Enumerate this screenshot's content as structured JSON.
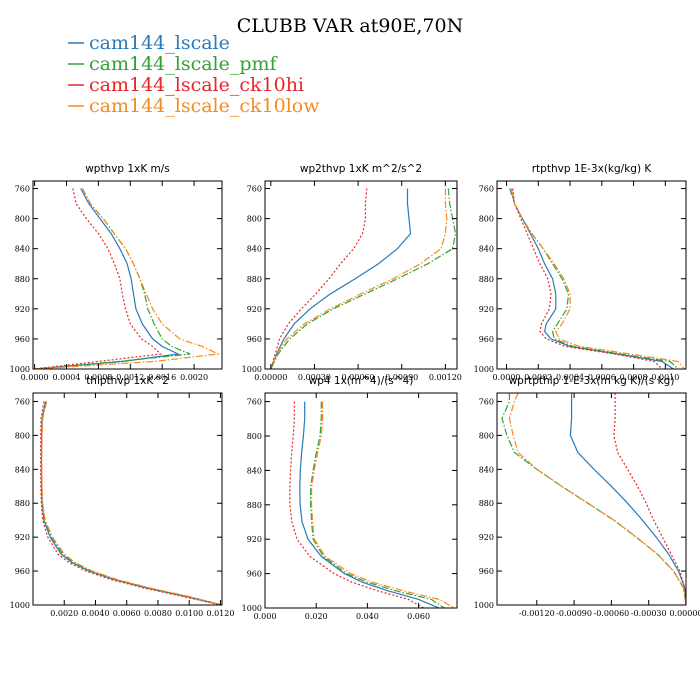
{
  "figure_title": "CLUBB VAR at90E,70N",
  "legend": [
    {
      "label": "cam144_lscale",
      "color": "#2a7ab8",
      "dash": "solid"
    },
    {
      "label": "cam144_lscale_pmf",
      "color": "#35a135",
      "dash": "dashdot"
    },
    {
      "label": "cam144_lscale_ck10hi",
      "color": "#e8262a",
      "dash": "dotted"
    },
    {
      "label": "cam144_lscale_ck10low",
      "color": "#f58b1f",
      "dash": "dashdot"
    }
  ],
  "chart_data": [
    {
      "type": "line",
      "title": "wpthvp   1xK m/s",
      "xlim": [
        -2e-05,
        0.00235
      ],
      "ylim": [
        1000,
        750
      ],
      "xticks": [
        0.0,
        0.0004,
        0.0008,
        0.0012,
        0.0016,
        0.002
      ],
      "xtick_labels": [
        "0.0000",
        "0.0004",
        "0.0008",
        "0.0012",
        "0.0016",
        "0.0020"
      ],
      "yticks": [
        760,
        800,
        840,
        880,
        920,
        960,
        1000
      ],
      "ytick_labels": [
        "760",
        "800",
        "840",
        "880",
        "920",
        "960",
        "1000"
      ],
      "y": [
        760,
        780,
        800,
        820,
        840,
        860,
        880,
        900,
        920,
        940,
        960,
        970,
        980,
        990,
        1000
      ],
      "series": [
        {
          "name": "cam144_lscale",
          "values": [
            0.00058,
            0.00068,
            0.00082,
            0.00096,
            0.00107,
            0.00116,
            0.00121,
            0.00124,
            0.00127,
            0.00135,
            0.00148,
            0.0016,
            0.0018,
            0.0011,
            0.0
          ]
        },
        {
          "name": "cam144_lscale_pmf",
          "values": [
            0.0006,
            0.0007,
            0.00086,
            0.001,
            0.00114,
            0.00124,
            0.00132,
            0.00138,
            0.00142,
            0.0015,
            0.0016,
            0.00172,
            0.00195,
            0.00105,
            0.0
          ]
        },
        {
          "name": "cam144_lscale_ck10hi",
          "values": [
            0.00048,
            0.00052,
            0.00065,
            0.0008,
            0.00092,
            0.001,
            0.00107,
            0.0011,
            0.00114,
            0.0012,
            0.00134,
            0.00148,
            0.00158,
            0.0008,
            0.0
          ]
        },
        {
          "name": "cam144_lscale_ck10low",
          "values": [
            0.0006,
            0.0007,
            0.00086,
            0.001,
            0.00114,
            0.00124,
            0.00132,
            0.0014,
            0.00148,
            0.0016,
            0.00182,
            0.0021,
            0.0023,
            0.0015,
            0.0
          ]
        }
      ]
    },
    {
      "type": "line",
      "title": "wp2thvp   1xK m^2/s^2",
      "xlim": [
        -4e-05,
        0.00128
      ],
      "ylim": [
        1000,
        750
      ],
      "xticks": [
        0.0,
        0.0003,
        0.0006,
        0.0009,
        0.0012
      ],
      "xtick_labels": [
        "0.00000",
        "0.00030",
        "0.00060",
        "0.00090",
        "0.00120"
      ],
      "yticks": [
        760,
        800,
        840,
        880,
        920,
        960,
        1000
      ],
      "ytick_labels": [
        "760",
        "800",
        "840",
        "880",
        "920",
        "960",
        "1000"
      ],
      "y": [
        760,
        780,
        800,
        820,
        840,
        860,
        880,
        900,
        920,
        940,
        960,
        980,
        1000
      ],
      "series": [
        {
          "name": "cam144_lscale",
          "values": [
            0.00094,
            0.00094,
            0.00095,
            0.00096,
            0.00087,
            0.00074,
            0.00058,
            0.00041,
            0.00027,
            0.00016,
            9e-05,
            4e-05,
            0.0
          ]
        },
        {
          "name": "cam144_lscale_pmf",
          "values": [
            0.00122,
            0.00123,
            0.00125,
            0.00127,
            0.00125,
            0.00108,
            0.00087,
            0.00065,
            0.00043,
            0.00025,
            0.00013,
            5e-05,
            0.0
          ]
        },
        {
          "name": "cam144_lscale_ck10hi",
          "values": [
            0.00066,
            0.00065,
            0.00065,
            0.00063,
            0.00057,
            0.00048,
            0.0004,
            0.00031,
            0.00021,
            0.00012,
            6e-05,
            3e-05,
            0.0
          ]
        },
        {
          "name": "cam144_lscale_ck10low",
          "values": [
            0.0012,
            0.0012,
            0.00121,
            0.0012,
            0.00117,
            0.00103,
            0.00084,
            0.00062,
            0.00041,
            0.00023,
            0.00011,
            4e-05,
            0.0
          ]
        }
      ]
    },
    {
      "type": "line",
      "title": "rtpthvp   1E-3x(kg/kg) K",
      "xlim": [
        -6e-05,
        0.00113
      ],
      "ylim": [
        1000,
        750
      ],
      "xticks": [
        0.0,
        0.0002,
        0.0004,
        0.0006,
        0.0008,
        0.001
      ],
      "xtick_labels": [
        "0.0000",
        "0.0002",
        "0.0004",
        "0.0006",
        "0.0008",
        "0.0010"
      ],
      "yticks": [
        760,
        800,
        840,
        880,
        920,
        960,
        1000
      ],
      "ytick_labels": [
        "760",
        "800",
        "840",
        "880",
        "920",
        "960",
        "1000"
      ],
      "y": [
        760,
        780,
        800,
        820,
        840,
        860,
        880,
        900,
        920,
        940,
        950,
        960,
        970,
        980,
        990,
        1000
      ],
      "series": [
        {
          "name": "cam144_lscale",
          "values": [
            3e-05,
            5e-05,
            0.0001,
            0.00015,
            0.0002,
            0.00024,
            0.00029,
            0.00031,
            0.00031,
            0.00025,
            0.00024,
            0.00028,
            0.0004,
            0.0007,
            0.00098,
            0.00105
          ]
        },
        {
          "name": "cam144_lscale_pmf",
          "values": [
            2e-05,
            5e-05,
            0.0001,
            0.00016,
            0.00023,
            0.00029,
            0.00035,
            0.00039,
            0.00038,
            0.00032,
            0.00029,
            0.0003,
            0.00042,
            0.00072,
            0.00103,
            0.00108
          ]
        },
        {
          "name": "cam144_lscale_ck10hi",
          "values": [
            4e-05,
            5e-05,
            9e-05,
            0.00013,
            0.00017,
            0.00021,
            0.00026,
            0.00028,
            0.00027,
            0.00022,
            0.00021,
            0.00025,
            0.00037,
            0.00068,
            0.00093,
            0.00098
          ]
        },
        {
          "name": "cam144_lscale_ck10low",
          "values": [
            3e-05,
            5e-05,
            0.0001,
            0.00016,
            0.00023,
            0.0003,
            0.00036,
            0.0004,
            0.0004,
            0.00035,
            0.00031,
            0.00033,
            0.00046,
            0.00078,
            0.00108,
            0.00112
          ]
        }
      ]
    },
    {
      "type": "line",
      "title": "thlpthvp   1xK^2",
      "xlim": [
        0.0,
        0.0121
      ],
      "ylim": [
        1000,
        750
      ],
      "xticks": [
        0.002,
        0.004,
        0.006,
        0.008,
        0.01,
        0.012
      ],
      "xtick_labels": [
        "0.0020",
        "0.0040",
        "0.0060",
        "0.0080",
        "0.0100",
        "0.0120"
      ],
      "yticks": [
        760,
        800,
        840,
        880,
        920,
        960,
        1000
      ],
      "ytick_labels": [
        "760",
        "800",
        "840",
        "880",
        "920",
        "960",
        "1000"
      ],
      "y": [
        760,
        780,
        800,
        820,
        840,
        860,
        880,
        900,
        920,
        940,
        950,
        960,
        970,
        980,
        990,
        1000
      ],
      "series": [
        {
          "name": "cam144_lscale",
          "values": [
            0.0008,
            0.00058,
            0.00055,
            0.00054,
            0.00054,
            0.00055,
            0.00058,
            0.0007,
            0.0011,
            0.0018,
            0.0025,
            0.0036,
            0.0052,
            0.0073,
            0.0098,
            0.0121
          ]
        },
        {
          "name": "cam144_lscale_pmf",
          "values": [
            0.00085,
            0.0006,
            0.00056,
            0.00055,
            0.00055,
            0.00056,
            0.0006,
            0.00075,
            0.0012,
            0.0019,
            0.0026,
            0.0037,
            0.0053,
            0.0074,
            0.0099,
            0.0121
          ]
        },
        {
          "name": "cam144_lscale_ck10hi",
          "values": [
            0.0007,
            0.00052,
            0.00049,
            0.00049,
            0.00049,
            0.0005,
            0.00053,
            0.00062,
            0.00095,
            0.0016,
            0.0023,
            0.0034,
            0.005,
            0.0071,
            0.0096,
            0.012
          ]
        },
        {
          "name": "cam144_lscale_ck10low",
          "values": [
            0.00088,
            0.00062,
            0.00058,
            0.00057,
            0.00057,
            0.00058,
            0.00062,
            0.00078,
            0.00125,
            0.002,
            0.0027,
            0.0038,
            0.0054,
            0.0075,
            0.01,
            0.0121
          ]
        }
      ]
    },
    {
      "type": "line",
      "title": "wp4   1x(m^4)/(s^4)",
      "xlim": [
        0.0,
        0.075
      ],
      "ylim": [
        1000,
        750
      ],
      "xticks": [
        0.0,
        0.02,
        0.04,
        0.06
      ],
      "xtick_labels": [
        "0.000",
        "0.020",
        "0.040",
        "0.060"
      ],
      "yticks": [
        760,
        800,
        840,
        880,
        920,
        960,
        1000
      ],
      "ytick_labels": [
        "760",
        "800",
        "840",
        "880",
        "920",
        "960",
        "1000"
      ],
      "y": [
        760,
        780,
        800,
        820,
        840,
        860,
        880,
        900,
        920,
        940,
        960,
        970,
        980,
        990,
        1000
      ],
      "series": [
        {
          "name": "cam144_lscale",
          "values": [
            0.0155,
            0.0155,
            0.015,
            0.0143,
            0.0138,
            0.0136,
            0.0137,
            0.0145,
            0.0168,
            0.022,
            0.031,
            0.038,
            0.048,
            0.06,
            0.068
          ]
        },
        {
          "name": "cam144_lscale_pmf",
          "values": [
            0.022,
            0.022,
            0.0215,
            0.02,
            0.0188,
            0.0178,
            0.0178,
            0.0182,
            0.0188,
            0.0228,
            0.032,
            0.04,
            0.051,
            0.065,
            0.07
          ]
        },
        {
          "name": "cam144_lscale_ck10hi",
          "values": [
            0.0115,
            0.0115,
            0.011,
            0.0104,
            0.01,
            0.0097,
            0.0097,
            0.0105,
            0.0125,
            0.0175,
            0.027,
            0.034,
            0.044,
            0.056,
            0.062
          ]
        },
        {
          "name": "cam144_lscale_ck10low",
          "values": [
            0.0225,
            0.0225,
            0.022,
            0.0205,
            0.0192,
            0.0182,
            0.0182,
            0.0186,
            0.0192,
            0.0235,
            0.0335,
            0.042,
            0.054,
            0.068,
            0.074
          ]
        }
      ]
    },
    {
      "type": "line",
      "title": "wprtpthlp   1-E-3x(m kg K)/(s kg)",
      "xlim": [
        -0.00152,
        0.0
      ],
      "ylim": [
        1000,
        750
      ],
      "xticks": [
        -0.0012,
        -0.0009,
        -0.0006,
        -0.0003,
        0.0
      ],
      "xtick_labels": [
        "-0.00120",
        "-0.00090",
        "-0.00060",
        "-0.00030",
        "0.00000"
      ],
      "yticks": [
        760,
        800,
        840,
        880,
        920,
        960,
        1000
      ],
      "ytick_labels": [
        "760",
        "800",
        "840",
        "880",
        "920",
        "960",
        "1000"
      ],
      "y": [
        750,
        760,
        780,
        800,
        820,
        840,
        860,
        880,
        900,
        920,
        940,
        960,
        980,
        1000
      ],
      "series": [
        {
          "name": "cam144_lscale",
          "values": [
            -0.00092,
            -0.00092,
            -0.00092,
            -0.00093,
            -0.00087,
            -0.00074,
            -0.0006,
            -0.00047,
            -0.00035,
            -0.00024,
            -0.00014,
            -6e-05,
            -1e-05,
            0.0
          ]
        },
        {
          "name": "cam144_lscale_pmf",
          "values": [
            -0.00142,
            -0.00142,
            -0.00148,
            -0.00144,
            -0.00138,
            -0.0012,
            -0.001,
            -0.00079,
            -0.00058,
            -0.0004,
            -0.00023,
            -0.0001,
            -2e-05,
            0.0
          ]
        },
        {
          "name": "cam144_lscale_ck10hi",
          "values": [
            -0.00057,
            -0.00057,
            -0.00057,
            -0.00058,
            -0.00055,
            -0.00047,
            -0.00039,
            -0.00032,
            -0.00026,
            -0.00019,
            -0.00012,
            -5e-05,
            -1e-05,
            0.0
          ]
        },
        {
          "name": "cam144_lscale_ck10low",
          "values": [
            -0.00135,
            -0.00138,
            -0.00142,
            -0.00139,
            -0.00135,
            -0.0012,
            -0.001,
            -0.00079,
            -0.00058,
            -0.0004,
            -0.00023,
            -0.0001,
            -2e-05,
            0.0
          ]
        }
      ]
    }
  ]
}
